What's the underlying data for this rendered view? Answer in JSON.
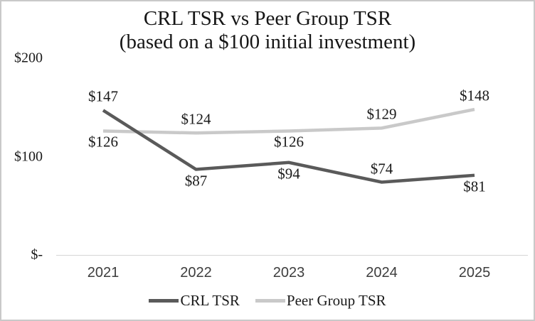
{
  "window": {
    "background": "#ffffff",
    "border_color": "#c9c9c9"
  },
  "chart_data": {
    "type": "line",
    "title": "CRL TSR vs Peer Group TSR",
    "subtitle": "(based on a $100 initial investment)",
    "categories": [
      "2021",
      "2022",
      "2023",
      "2024",
      "2025"
    ],
    "series": [
      {
        "name": "CRL TSR",
        "color": "#5a5a5a",
        "values": [
          147,
          87,
          94,
          74,
          81
        ],
        "labels": [
          "$147",
          "$87",
          "$94",
          "$74",
          "$81"
        ],
        "label_positions": [
          "above",
          "below",
          "below",
          "above",
          "below"
        ]
      },
      {
        "name": "Peer Group TSR",
        "color": "#c9c9c9",
        "values": [
          126,
          124,
          126,
          129,
          148
        ],
        "labels": [
          "$126",
          "$124",
          "$126",
          "$129",
          "$148"
        ],
        "label_positions": [
          "below",
          "above",
          "below",
          "above",
          "above"
        ]
      }
    ],
    "y_axis": {
      "min": 0,
      "max": 200,
      "ticks": [
        {
          "label": "$200",
          "value": 200
        },
        {
          "label": "$100",
          "value": 100
        },
        {
          "label": "$-",
          "value": 0
        }
      ]
    },
    "x_axis_color": "#d6d6d6",
    "grid": false,
    "legend": {
      "position": "bottom",
      "entries": [
        "CRL TSR",
        "Peer Group TSR"
      ]
    }
  }
}
